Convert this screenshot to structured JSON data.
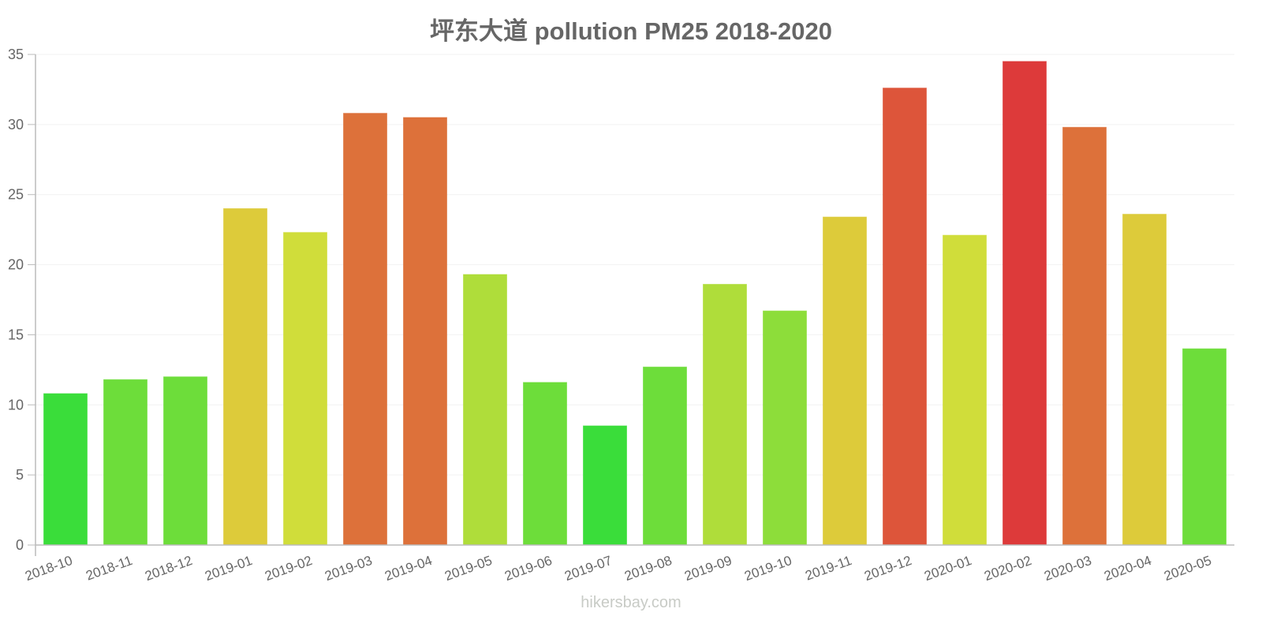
{
  "title": "坪东大道 pollution PM25 2018-2020",
  "watermark": "hikersbay.com",
  "chart_data": {
    "type": "bar",
    "title": "坪东大道 pollution PM25 2018-2020",
    "xlabel": "",
    "ylabel": "",
    "ylim": [
      0,
      35
    ],
    "yticks": [
      0,
      5,
      10,
      15,
      20,
      25,
      30,
      35
    ],
    "grid": true,
    "legend": "none",
    "categories": [
      "2018-10",
      "2018-11",
      "2018-12",
      "2019-01",
      "2019-02",
      "2019-03",
      "2019-04",
      "2019-05",
      "2019-06",
      "2019-07",
      "2019-08",
      "2019-09",
      "2019-10",
      "2019-11",
      "2019-12",
      "2020-01",
      "2020-02",
      "2020-03",
      "2020-04",
      "2020-05"
    ],
    "values": [
      10.8,
      11.8,
      12.0,
      24.0,
      22.3,
      30.8,
      30.5,
      19.3,
      11.6,
      8.5,
      12.7,
      18.6,
      16.7,
      23.4,
      32.6,
      22.1,
      34.5,
      29.8,
      23.6,
      14.0
    ],
    "colors": [
      "#36dc36",
      "#6adc36",
      "#6adc36",
      "#dcca36",
      "#cfdc36",
      "#dc6e36",
      "#dc6e36",
      "#addc36",
      "#6adc36",
      "#36dc36",
      "#6adc36",
      "#addc36",
      "#8bdc36",
      "#dcca36",
      "#dc5236",
      "#cfdc36",
      "#dc3636",
      "#dc6e36",
      "#dcca36",
      "#6adc36"
    ]
  }
}
